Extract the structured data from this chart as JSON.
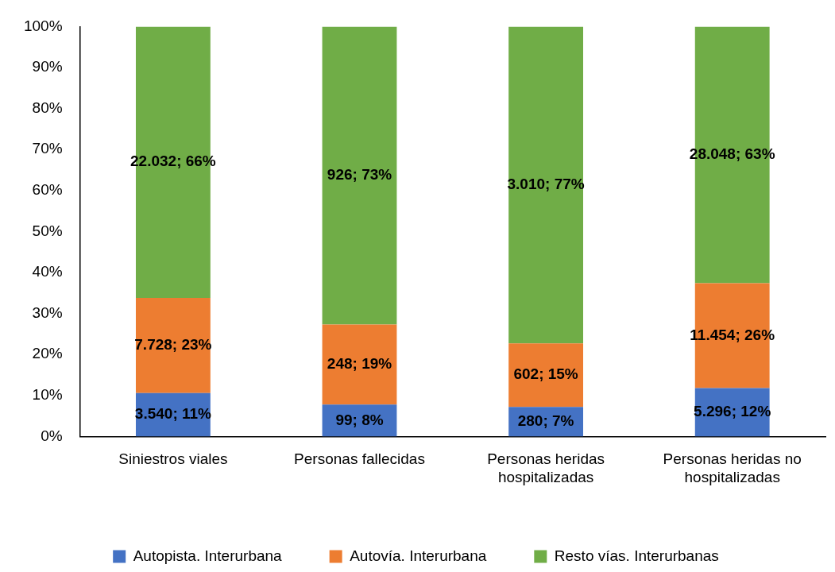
{
  "chart_data": {
    "type": "bar",
    "stacked": true,
    "categories": [
      "Siniestros viales",
      "Personas fallecidas",
      "Personas heridas hospitalizadas",
      "Personas heridas no hospitalizadas"
    ],
    "series": [
      {
        "name": "Autopista. Interurbana",
        "color": "#4472c4",
        "values": [
          10.6,
          7.8,
          7.2,
          11.8
        ],
        "value_labels": [
          "3.540; 11%",
          "99; 8%",
          "280; 7%",
          "5.296; 12%"
        ]
      },
      {
        "name": "Autovía. Interurbana",
        "color": "#ed7d31",
        "values": [
          23.2,
          19.5,
          15.5,
          25.6
        ],
        "value_labels": [
          "7.728; 23%",
          "248; 19%",
          "602; 15%",
          "11.454; 26%"
        ]
      },
      {
        "name": "Resto vías. Interurbanas",
        "color": "#70ad47",
        "values": [
          66.2,
          72.7,
          77.3,
          62.6
        ],
        "value_labels": [
          "22.032; 66%",
          "926; 73%",
          "3.010; 77%",
          "28.048; 63%"
        ]
      }
    ],
    "ylim": [
      0,
      100
    ],
    "yticks": [
      {
        "value": 0,
        "label": "0%"
      },
      {
        "value": 10,
        "label": "10%"
      },
      {
        "value": 20,
        "label": "20%"
      },
      {
        "value": 30,
        "label": "30%"
      },
      {
        "value": 40,
        "label": "40%"
      },
      {
        "value": 50,
        "label": "50%"
      },
      {
        "value": 60,
        "label": "60%"
      },
      {
        "value": 70,
        "label": "70%"
      },
      {
        "value": 80,
        "label": "80%"
      },
      {
        "value": 90,
        "label": "90%"
      },
      {
        "value": 100,
        "label": "100%"
      }
    ],
    "grid": false,
    "legend": "bottom"
  }
}
